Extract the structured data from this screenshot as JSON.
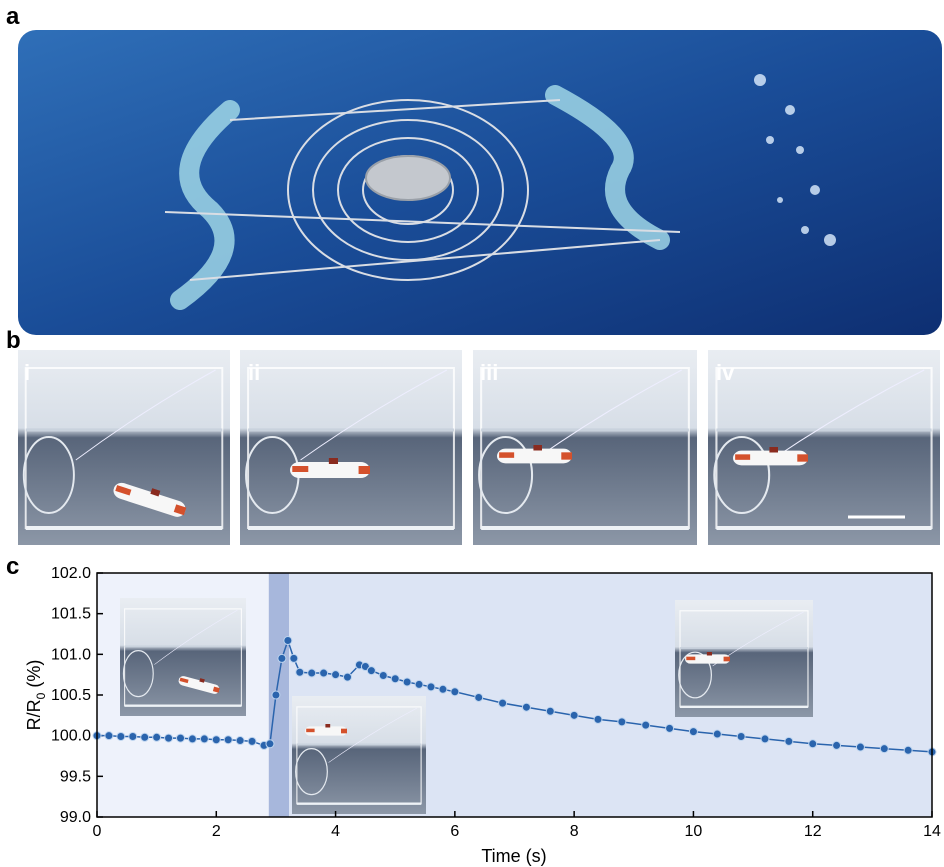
{
  "panels": {
    "a": {
      "label": "a"
    },
    "b": {
      "label": "b",
      "subpanels": [
        "i",
        "ii",
        "iii",
        "iv"
      ]
    },
    "c": {
      "label": "c"
    }
  },
  "chart_data": {
    "type": "line",
    "marker": true,
    "color": "#2a64ad",
    "xlabel": "Time (s)",
    "ylabel": [
      "R/R",
      "0",
      " (%)"
    ],
    "xlim": [
      0,
      14
    ],
    "ylim": [
      99.0,
      102.0
    ],
    "xticks": [
      0,
      2,
      4,
      6,
      8,
      10,
      12,
      14
    ],
    "yticks": [
      {
        "value": 99.0,
        "label": "99.0"
      },
      {
        "value": 99.5,
        "label": "99.5"
      },
      {
        "value": 100.0,
        "label": "100.0"
      },
      {
        "value": 100.5,
        "label": "100.5"
      },
      {
        "value": 101.0,
        "label": "101.0"
      },
      {
        "value": 101.5,
        "label": "101.5"
      },
      {
        "value": 102.0,
        "label": "102.0"
      }
    ],
    "shaded_regions": [
      {
        "xlim": [
          0,
          2.88
        ],
        "color": "#eef2fb"
      },
      {
        "xlim": [
          2.88,
          3.22
        ],
        "color": "#a7b7dc"
      },
      {
        "xlim": [
          3.22,
          14
        ],
        "color": "#dce4f4"
      }
    ],
    "x": [
      0,
      0.2,
      0.4,
      0.6,
      0.8,
      1.0,
      1.2,
      1.4,
      1.6,
      1.8,
      2.0,
      2.2,
      2.4,
      2.6,
      2.8,
      2.9,
      3.0,
      3.1,
      3.2,
      3.3,
      3.4,
      3.6,
      3.8,
      4.0,
      4.2,
      4.4,
      4.5,
      4.6,
      4.8,
      5.0,
      5.2,
      5.4,
      5.6,
      5.8,
      6.0,
      6.4,
      6.8,
      7.2,
      7.6,
      8.0,
      8.4,
      8.8,
      9.2,
      9.6,
      10.0,
      10.4,
      10.8,
      11.2,
      11.6,
      12.0,
      12.4,
      12.8,
      13.2,
      13.6,
      14.0
    ],
    "values": [
      100.0,
      100.0,
      99.99,
      99.99,
      99.98,
      99.98,
      99.97,
      99.97,
      99.96,
      99.96,
      99.95,
      99.95,
      99.94,
      99.93,
      99.88,
      99.9,
      100.5,
      100.95,
      101.17,
      100.95,
      100.78,
      100.77,
      100.77,
      100.75,
      100.72,
      100.87,
      100.85,
      100.8,
      100.74,
      100.7,
      100.66,
      100.63,
      100.6,
      100.57,
      100.54,
      100.47,
      100.4,
      100.35,
      100.3,
      100.25,
      100.2,
      100.17,
      100.13,
      100.09,
      100.05,
      100.02,
      99.99,
      99.96,
      99.93,
      99.9,
      99.88,
      99.86,
      99.84,
      99.82,
      99.8
    ]
  }
}
